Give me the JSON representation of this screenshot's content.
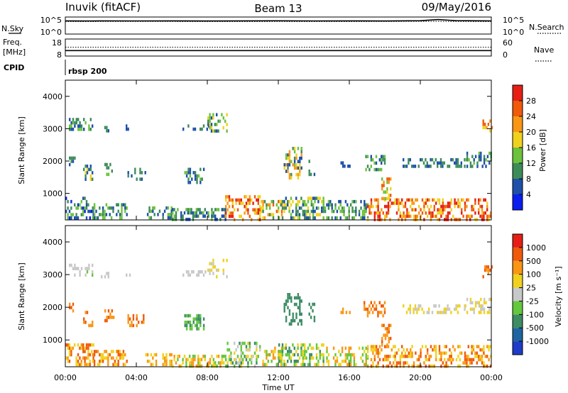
{
  "header": {
    "station": "Inuvik (fitACF)",
    "beam": "Beam 13",
    "date": "09/May/2016"
  },
  "chart_data": [
    {
      "type": "line",
      "panel": "noise",
      "left_label": "N.Sky",
      "right_label": "N.Search",
      "left_ticks": [
        "10^5",
        "10^0"
      ],
      "right_ticks": [
        "10^5",
        "10^0"
      ],
      "series": [
        {
          "name": "N.Sky",
          "style": "solid",
          "x": [
            0,
            1,
            2,
            4,
            6,
            8,
            10,
            12,
            14,
            16,
            18,
            20,
            21,
            22,
            24
          ],
          "y": [
            10000,
            9000,
            10000,
            9500,
            10000,
            9000,
            10000,
            10500,
            9500,
            10000,
            9000,
            11000,
            25000,
            12000,
            10000
          ]
        },
        {
          "name": "N.Search",
          "style": "dotted",
          "x": [
            0,
            4,
            8,
            12,
            16,
            20,
            24
          ],
          "y": [
            6000,
            6500,
            6000,
            6200,
            6000,
            7000,
            6000
          ]
        }
      ]
    },
    {
      "type": "line",
      "panel": "frequency",
      "left_label": "Freq.",
      "left_unit": "[MHz]",
      "right_label": "Nave",
      "left_ticks": [
        "18",
        "8"
      ],
      "right_ticks": [
        "60",
        "0"
      ],
      "series": [
        {
          "name": "Freq.",
          "style": "solid",
          "x": [
            0,
            24
          ],
          "y": [
            11.2,
            11.2
          ]
        },
        {
          "name": "Nave",
          "style": "dotted",
          "x": [
            0,
            24
          ],
          "y": [
            33,
            33
          ]
        }
      ]
    },
    {
      "type": "table",
      "panel": "cpid",
      "label": "CPID",
      "segments": [
        {
          "start_hour": 0,
          "end_hour": 24,
          "name": "rbsp 200"
        }
      ]
    },
    {
      "type": "heatmap",
      "panel": "power",
      "ylabel": "Slant Range [km]",
      "yticks": [
        1000,
        2000,
        3000,
        4000
      ],
      "ylim": [
        180,
        4500
      ],
      "xlim": [
        0,
        24
      ],
      "colorbar": {
        "label": "Power [dB]",
        "ticks": [
          "4",
          "8",
          "12",
          "16",
          "20",
          "24",
          "28"
        ],
        "colors": [
          "#0a1ef0",
          "#1e50aa",
          "#3c8c5a",
          "#6cc23c",
          "#f0d21e",
          "#fa9614",
          "#f05a0a",
          "#e61e14"
        ]
      },
      "regions": [
        {
          "t0": 0.0,
          "t1": 1.6,
          "r0": 200,
          "r1": 900,
          "levels": [
            0,
            1,
            2,
            3
          ]
        },
        {
          "t0": 0.2,
          "t1": 0.9,
          "r0": 2950,
          "r1": 3350,
          "levels": [
            1,
            2,
            3
          ]
        },
        {
          "t0": 1.0,
          "t1": 1.5,
          "r0": 2950,
          "r1": 3350,
          "levels": [
            1,
            2,
            3
          ]
        },
        {
          "t0": 1.0,
          "t1": 1.5,
          "r0": 1450,
          "r1": 1900,
          "levels": [
            1,
            2,
            4
          ]
        },
        {
          "t0": 0.2,
          "t1": 0.5,
          "r0": 1900,
          "r1": 2150,
          "levels": [
            1,
            2
          ]
        },
        {
          "t0": 2.2,
          "t1": 2.7,
          "r0": 1550,
          "r1": 1950,
          "levels": [
            1,
            2,
            3
          ]
        },
        {
          "t0": 2.0,
          "t1": 2.4,
          "r0": 2950,
          "r1": 3100,
          "levels": [
            1,
            2
          ]
        },
        {
          "t0": 1.5,
          "t1": 3.5,
          "r0": 200,
          "r1": 700,
          "levels": [
            1,
            2,
            3
          ]
        },
        {
          "t0": 3.4,
          "t1": 3.6,
          "r0": 2950,
          "r1": 3150,
          "levels": [
            1
          ]
        },
        {
          "t0": 3.5,
          "t1": 4.5,
          "r0": 1450,
          "r1": 1800,
          "levels": [
            1,
            2
          ]
        },
        {
          "t0": 4.5,
          "t1": 6.0,
          "r0": 200,
          "r1": 600,
          "levels": [
            1,
            2,
            3
          ]
        },
        {
          "t0": 6.6,
          "t1": 8.2,
          "r0": 3000,
          "r1": 3150,
          "levels": [
            1,
            2
          ]
        },
        {
          "t0": 8.0,
          "t1": 9.1,
          "r0": 2950,
          "r1": 3500,
          "levels": [
            1,
            2,
            3,
            4
          ]
        },
        {
          "t0": 6.7,
          "t1": 7.8,
          "r0": 1350,
          "r1": 1800,
          "levels": [
            1,
            2,
            3
          ]
        },
        {
          "t0": 6.0,
          "t1": 9.0,
          "r0": 200,
          "r1": 550,
          "levels": [
            1,
            2,
            3
          ]
        },
        {
          "t0": 9.0,
          "t1": 11.0,
          "r0": 200,
          "r1": 950,
          "levels": [
            4,
            5,
            6,
            7
          ]
        },
        {
          "t0": 11.0,
          "t1": 12.2,
          "r0": 200,
          "r1": 800,
          "levels": [
            2,
            3,
            4,
            5,
            6
          ]
        },
        {
          "t0": 12.3,
          "t1": 13.3,
          "r0": 1500,
          "r1": 2450,
          "levels": [
            1,
            2,
            3,
            4,
            5
          ]
        },
        {
          "t0": 12.0,
          "t1": 14.5,
          "r0": 200,
          "r1": 900,
          "levels": [
            1,
            2,
            3,
            4
          ]
        },
        {
          "t0": 13.7,
          "t1": 14.0,
          "r0": 1600,
          "r1": 2150,
          "levels": [
            1,
            2
          ]
        },
        {
          "t0": 14.5,
          "t1": 17.0,
          "r0": 200,
          "r1": 800,
          "levels": [
            1,
            2,
            3
          ]
        },
        {
          "t0": 15.5,
          "t1": 16.0,
          "r0": 1800,
          "r1": 2000,
          "levels": [
            1
          ]
        },
        {
          "t0": 16.8,
          "t1": 18.0,
          "r0": 1700,
          "r1": 2200,
          "levels": [
            1,
            2,
            3
          ]
        },
        {
          "t0": 17.0,
          "t1": 24.0,
          "r0": 200,
          "r1": 850,
          "levels": [
            4,
            5,
            6,
            7
          ]
        },
        {
          "t0": 17.8,
          "t1": 18.3,
          "r0": 800,
          "r1": 1500,
          "levels": [
            3,
            4,
            5,
            6
          ]
        },
        {
          "t0": 19.0,
          "t1": 22.5,
          "r0": 1800,
          "r1": 2100,
          "levels": [
            1,
            2
          ]
        },
        {
          "t0": 22.5,
          "t1": 24.0,
          "r0": 1800,
          "r1": 2300,
          "levels": [
            1,
            2,
            3
          ]
        },
        {
          "t0": 23.5,
          "t1": 24.0,
          "r0": 2900,
          "r1": 3300,
          "levels": [
            4,
            5,
            6
          ]
        }
      ]
    },
    {
      "type": "heatmap",
      "panel": "velocity",
      "ylabel": "Slant Range [km]",
      "yticks": [
        1000,
        2000,
        3000,
        4000
      ],
      "ylim": [
        180,
        4500
      ],
      "xlim": [
        0,
        24
      ],
      "xticks": [
        "00:00",
        "04:00",
        "08:00",
        "12:00",
        "16:00",
        "20:00",
        "00:00"
      ],
      "xlabel": "Time UT",
      "colorbar": {
        "label": "Velocity [m s⁻¹]",
        "ticks": [
          "1000",
          "500",
          "100",
          "25",
          "-25",
          "-100",
          "-500",
          "-1000"
        ],
        "colors": [
          "#1e3cc8",
          "#1e64a0",
          "#3c8c64",
          "#64c83c",
          "#c8c8c8",
          "#f0d21e",
          "#fa9614",
          "#f05a0a",
          "#e61e14"
        ]
      },
      "regions": [
        {
          "t0": 0.0,
          "t1": 1.6,
          "r0": 200,
          "r1": 900,
          "levels": [
            6,
            7,
            5
          ]
        },
        {
          "t0": 0.2,
          "t1": 0.9,
          "r0": 2950,
          "r1": 3350,
          "levels": [
            4
          ]
        },
        {
          "t0": 1.0,
          "t1": 1.5,
          "r0": 2950,
          "r1": 3350,
          "levels": [
            4,
            3
          ]
        },
        {
          "t0": 1.0,
          "t1": 1.5,
          "r0": 1450,
          "r1": 1900,
          "levels": [
            6,
            7
          ]
        },
        {
          "t0": 0.2,
          "t1": 0.5,
          "r0": 1900,
          "r1": 2150,
          "levels": [
            6,
            7
          ]
        },
        {
          "t0": 2.2,
          "t1": 2.7,
          "r0": 1550,
          "r1": 1950,
          "levels": [
            6,
            7
          ]
        },
        {
          "t0": 2.0,
          "t1": 2.4,
          "r0": 2950,
          "r1": 3100,
          "levels": [
            4
          ]
        },
        {
          "t0": 1.5,
          "t1": 3.5,
          "r0": 200,
          "r1": 700,
          "levels": [
            5,
            6,
            7
          ]
        },
        {
          "t0": 3.4,
          "t1": 3.6,
          "r0": 2950,
          "r1": 3150,
          "levels": [
            4
          ]
        },
        {
          "t0": 3.5,
          "t1": 4.5,
          "r0": 1450,
          "r1": 1800,
          "levels": [
            6,
            7
          ]
        },
        {
          "t0": 4.5,
          "t1": 6.0,
          "r0": 200,
          "r1": 600,
          "levels": [
            5,
            6
          ]
        },
        {
          "t0": 6.6,
          "t1": 8.2,
          "r0": 3000,
          "r1": 3150,
          "levels": [
            4
          ]
        },
        {
          "t0": 8.0,
          "t1": 9.1,
          "r0": 2950,
          "r1": 3500,
          "levels": [
            4,
            5
          ]
        },
        {
          "t0": 6.7,
          "t1": 7.8,
          "r0": 1350,
          "r1": 1800,
          "levels": [
            2,
            3
          ]
        },
        {
          "t0": 6.0,
          "t1": 9.0,
          "r0": 200,
          "r1": 550,
          "levels": [
            3,
            5,
            6
          ]
        },
        {
          "t0": 9.0,
          "t1": 11.0,
          "r0": 200,
          "r1": 950,
          "levels": [
            3,
            4,
            5,
            2
          ]
        },
        {
          "t0": 11.0,
          "t1": 12.2,
          "r0": 200,
          "r1": 800,
          "levels": [
            3,
            5,
            6
          ]
        },
        {
          "t0": 12.3,
          "t1": 13.3,
          "r0": 1500,
          "r1": 2450,
          "levels": [
            2
          ]
        },
        {
          "t0": 12.0,
          "t1": 14.5,
          "r0": 200,
          "r1": 900,
          "levels": [
            2,
            3,
            5
          ]
        },
        {
          "t0": 13.7,
          "t1": 14.0,
          "r0": 1600,
          "r1": 2150,
          "levels": [
            2
          ]
        },
        {
          "t0": 14.5,
          "t1": 17.0,
          "r0": 200,
          "r1": 800,
          "levels": [
            5,
            6,
            3
          ]
        },
        {
          "t0": 15.5,
          "t1": 16.0,
          "r0": 1800,
          "r1": 2000,
          "levels": [
            6
          ]
        },
        {
          "t0": 16.8,
          "t1": 18.0,
          "r0": 1700,
          "r1": 2200,
          "levels": [
            6,
            7
          ]
        },
        {
          "t0": 17.0,
          "t1": 24.0,
          "r0": 200,
          "r1": 850,
          "levels": [
            6,
            7,
            5
          ]
        },
        {
          "t0": 17.8,
          "t1": 18.3,
          "r0": 800,
          "r1": 1500,
          "levels": [
            6,
            7
          ]
        },
        {
          "t0": 19.0,
          "t1": 22.5,
          "r0": 1800,
          "r1": 2100,
          "levels": [
            4,
            5
          ]
        },
        {
          "t0": 22.5,
          "t1": 24.0,
          "r0": 1800,
          "r1": 2300,
          "levels": [
            4,
            5
          ]
        },
        {
          "t0": 23.5,
          "t1": 24.0,
          "r0": 2900,
          "r1": 3300,
          "levels": [
            6,
            7
          ]
        }
      ]
    }
  ]
}
